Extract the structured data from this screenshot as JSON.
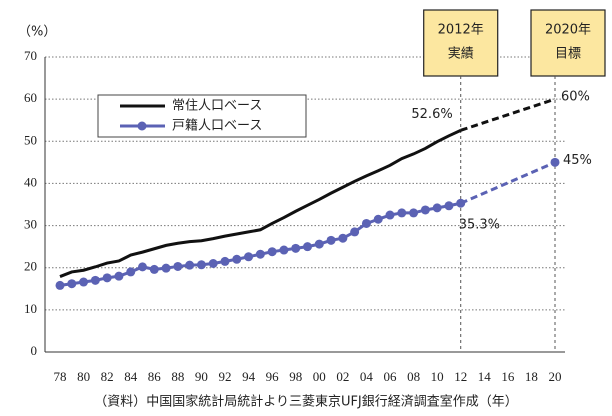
{
  "chart_data": {
    "type": "line",
    "y_axis_label": "（%）",
    "note": "（資料）中国国家統計局統計より三菱東京UFJ銀行経済調査室作成（年）",
    "categories": [
      "78",
      null,
      "80",
      null,
      "82",
      null,
      "84",
      null,
      "86",
      null,
      "88",
      null,
      "90",
      null,
      "92",
      null,
      "94",
      null,
      "96",
      null,
      "98",
      null,
      "00",
      null,
      "02",
      null,
      "04",
      null,
      "06",
      null,
      "08",
      null,
      "10",
      null,
      "12",
      null,
      "14",
      null,
      "16",
      null,
      "18",
      null,
      "20"
    ],
    "ylim": [
      0,
      70
    ],
    "yticks": [
      0,
      10,
      20,
      30,
      40,
      50,
      60,
      70
    ],
    "grid": true,
    "series": [
      {
        "name": "常住人口ベース",
        "color": "#111111",
        "markers": false,
        "values": [
          17.9,
          19.0,
          19.4,
          20.2,
          21.1,
          21.6,
          23.0,
          23.7,
          24.5,
          25.3,
          25.8,
          26.2,
          26.4,
          26.9,
          27.5,
          28.0,
          28.5,
          29.0,
          30.5,
          31.9,
          33.4,
          34.8,
          36.2,
          37.7,
          39.1,
          40.5,
          41.8,
          43.0,
          44.3,
          45.9,
          47.0,
          48.3,
          49.9,
          51.3,
          52.6,
          null,
          null,
          null,
          null,
          null,
          null,
          null,
          null
        ],
        "value_labels": [
          null,
          null,
          null,
          null,
          null,
          null,
          null,
          null,
          null,
          null,
          null,
          null,
          null,
          null,
          null,
          null,
          null,
          null,
          null,
          null,
          null,
          null,
          null,
          null,
          null,
          null,
          null,
          null,
          null,
          null,
          null,
          null,
          null,
          null,
          "52.6%",
          null,
          null,
          null,
          null,
          null,
          null,
          null,
          null
        ],
        "target": 60,
        "target_label": "60%"
      },
      {
        "name": "戸籍人口ベース",
        "color": "#5b62b4",
        "markers": true,
        "values": [
          15.8,
          16.2,
          16.6,
          17.0,
          17.6,
          18.0,
          19.0,
          20.2,
          19.6,
          19.9,
          20.3,
          20.6,
          20.7,
          21.0,
          21.5,
          22.0,
          22.6,
          23.2,
          23.8,
          24.2,
          24.6,
          25.0,
          25.6,
          26.5,
          27.0,
          28.5,
          30.5,
          31.5,
          32.5,
          33.0,
          33.0,
          33.7,
          34.2,
          34.7,
          35.3,
          null,
          null,
          null,
          null,
          null,
          null,
          null,
          null
        ],
        "value_labels": [
          null,
          null,
          null,
          null,
          null,
          null,
          null,
          null,
          null,
          null,
          null,
          null,
          null,
          null,
          null,
          null,
          null,
          null,
          null,
          null,
          null,
          null,
          null,
          null,
          null,
          null,
          null,
          null,
          null,
          null,
          null,
          null,
          null,
          null,
          "35.3%",
          null,
          null,
          null,
          null,
          null,
          null,
          null,
          null
        ],
        "target": 45,
        "target_label": "45%"
      }
    ],
    "annotations": [
      [
        "2012年",
        "実績"
      ],
      [
        "2020年",
        "目標"
      ]
    ]
  }
}
